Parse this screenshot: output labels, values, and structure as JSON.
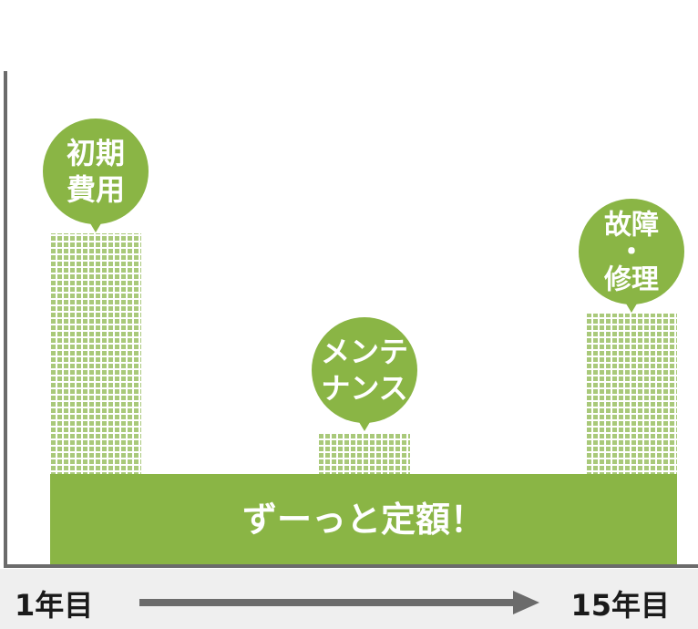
{
  "chart_data": {
    "type": "bar",
    "categories": [
      "初期費用",
      "",
      "メンテナンス",
      "",
      "故障・修理"
    ],
    "values": [
      364,
      80,
      146,
      80,
      276
    ],
    "base": {
      "label": "ずーっと定額！",
      "value": 100
    },
    "callouts": [
      {
        "category_index": 0,
        "lines": [
          "初期",
          "費用"
        ]
      },
      {
        "category_index": 2,
        "lines": [
          "メンテ",
          "ナンス"
        ]
      },
      {
        "category_index": 4,
        "lines": [
          "故障",
          "・",
          "修理"
        ]
      }
    ],
    "x_axis": {
      "start_label": "1年目",
      "end_label": "15年目"
    },
    "ylim": [
      0,
      560
    ],
    "legend": "none",
    "grid": false
  },
  "colors": {
    "accent": "#8ab545",
    "bar_dots": "#a9c97a",
    "axis": "#6b6b6b",
    "footer_bg": "#efefef",
    "text_dark": "#1a1a1a",
    "text_light": "#ffffff"
  }
}
